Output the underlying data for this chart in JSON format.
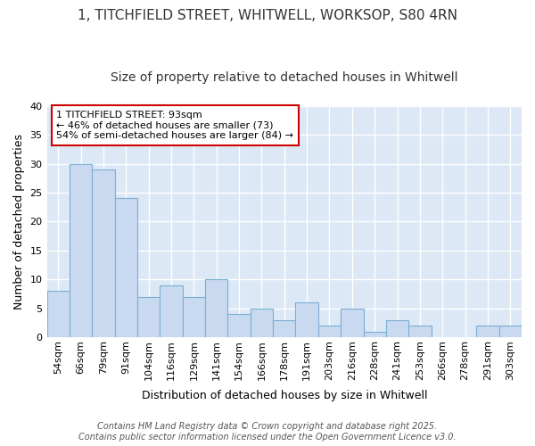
{
  "title_line1": "1, TITCHFIELD STREET, WHITWELL, WORKSOP, S80 4RN",
  "title_line2": "Size of property relative to detached houses in Whitwell",
  "xlabel": "Distribution of detached houses by size in Whitwell",
  "ylabel": "Number of detached properties",
  "categories": [
    "54sqm",
    "66sqm",
    "79sqm",
    "91sqm",
    "104sqm",
    "116sqm",
    "129sqm",
    "141sqm",
    "154sqm",
    "166sqm",
    "178sqm",
    "191sqm",
    "203sqm",
    "216sqm",
    "228sqm",
    "241sqm",
    "253sqm",
    "266sqm",
    "278sqm",
    "291sqm",
    "303sqm"
  ],
  "values": [
    8,
    30,
    29,
    24,
    7,
    9,
    7,
    10,
    4,
    5,
    3,
    6,
    2,
    5,
    1,
    3,
    2,
    0,
    0,
    2,
    2
  ],
  "bar_color": "#c9daf0",
  "bar_edge_color": "#7aafd4",
  "annotation_text": "1 TITCHFIELD STREET: 93sqm\n← 46% of detached houses are smaller (73)\n54% of semi-detached houses are larger (84) →",
  "annotation_box_color": "#ffffff",
  "annotation_box_edge": "#cc0000",
  "ylim": [
    0,
    40
  ],
  "yticks": [
    0,
    5,
    10,
    15,
    20,
    25,
    30,
    35,
    40
  ],
  "fig_background_color": "#ffffff",
  "plot_background": "#dce8f5",
  "grid_color": "#ffffff",
  "footer": "Contains HM Land Registry data © Crown copyright and database right 2025.\nContains public sector information licensed under the Open Government Licence v3.0.",
  "title_fontsize": 11,
  "subtitle_fontsize": 10,
  "axis_label_fontsize": 9,
  "tick_fontsize": 8,
  "annotation_fontsize": 8,
  "footer_fontsize": 7
}
